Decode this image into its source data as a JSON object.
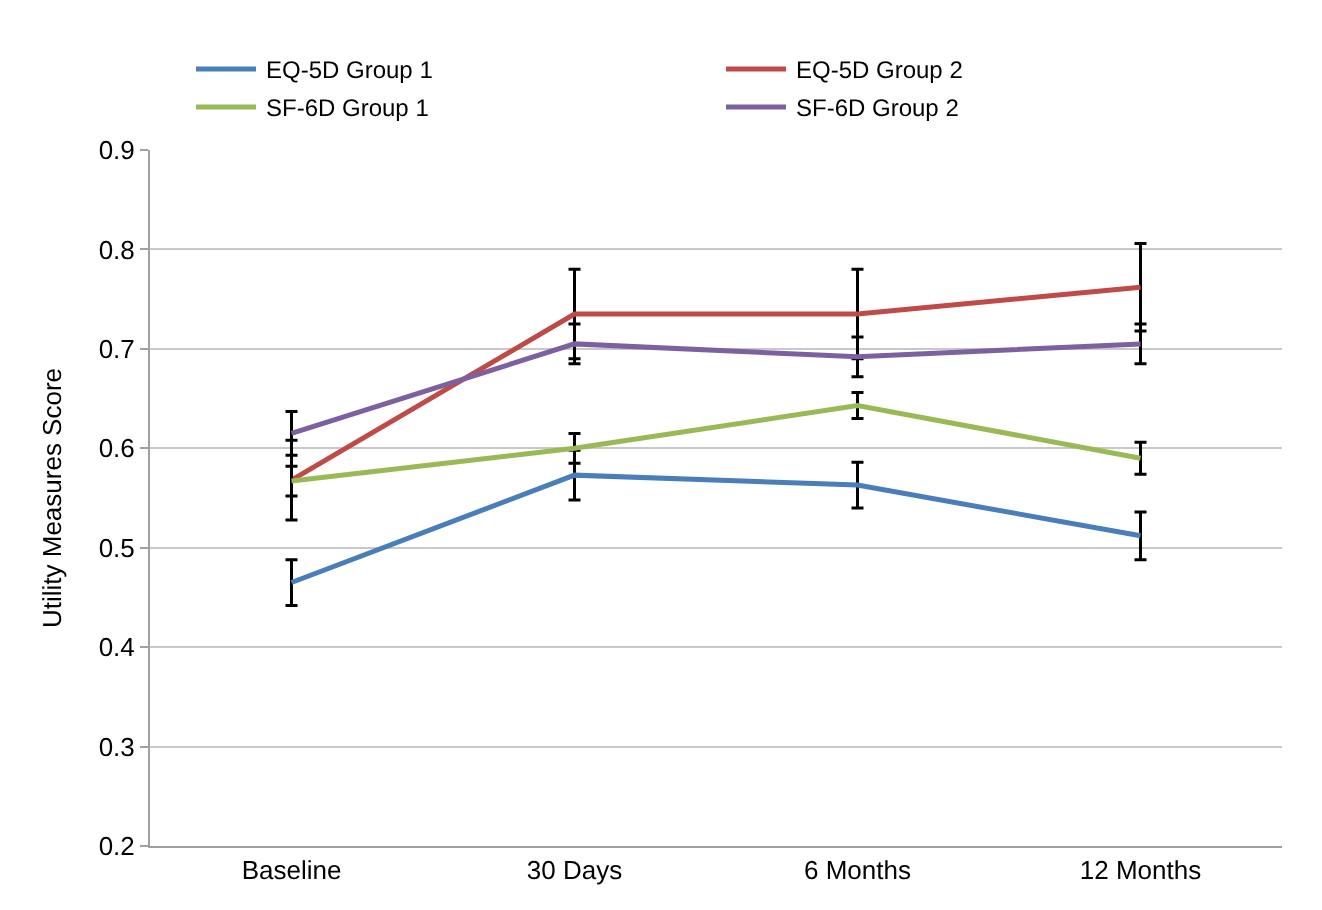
{
  "chart_data": {
    "type": "line",
    "ylabel": "Utility Measures Score",
    "categories": [
      "Baseline",
      "30 Days",
      "6 Months",
      "12 Months"
    ],
    "series": [
      {
        "name": "EQ-5D Group 1",
        "color": "#4a7ebb",
        "values": [
          0.465,
          0.573,
          0.563,
          0.512
        ],
        "errors": [
          0.023,
          0.025,
          0.023,
          0.024
        ]
      },
      {
        "name": "EQ-5D Group 2",
        "color": "#be4b48",
        "values": [
          0.568,
          0.735,
          0.735,
          0.762
        ],
        "errors": [
          0.04,
          0.045,
          0.045,
          0.044
        ]
      },
      {
        "name": "SF-6D Group 1",
        "color": "#98b954",
        "values": [
          0.567,
          0.6,
          0.643,
          0.59
        ],
        "errors": [
          0.015,
          0.015,
          0.013,
          0.016
        ]
      },
      {
        "name": "SF-6D Group 2",
        "color": "#7d60a0",
        "values": [
          0.615,
          0.705,
          0.692,
          0.705
        ],
        "errors": [
          0.022,
          0.02,
          0.02,
          0.02
        ]
      }
    ],
    "ylim": [
      0.2,
      0.9
    ],
    "yticks": [
      0.2,
      0.3,
      0.4,
      0.5,
      0.6,
      0.7,
      0.8,
      0.9
    ],
    "grid": "y",
    "legend": "top",
    "marker": "none",
    "line_style": "solid"
  }
}
